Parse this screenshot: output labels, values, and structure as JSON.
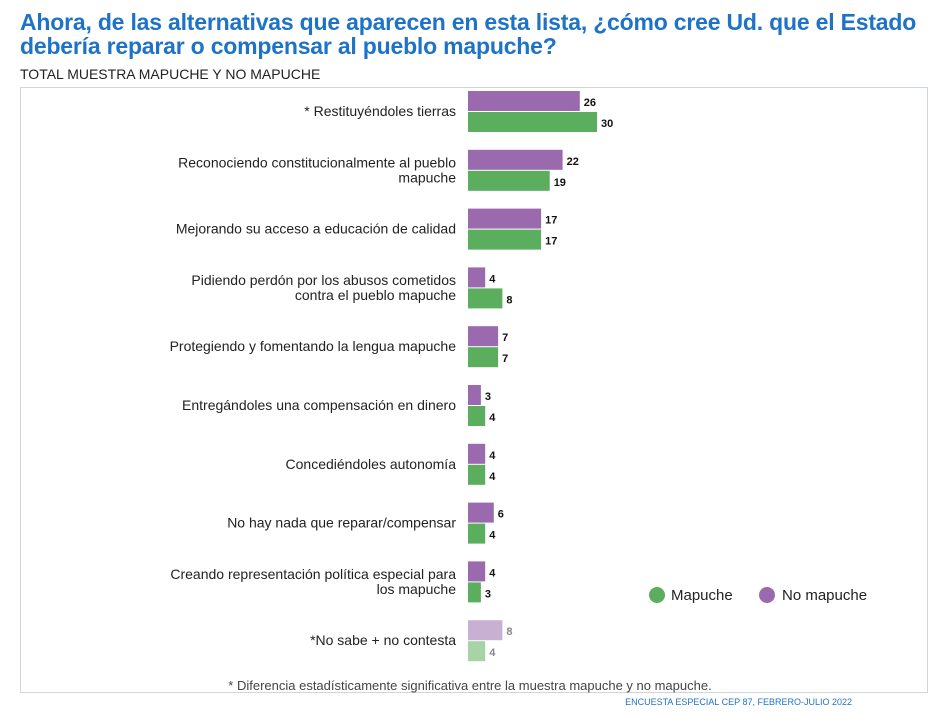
{
  "title": "Ahora, de las alternativas que aparecen en esta lista, ¿cómo cree Ud. que el Estado debería reparar o compensar al pueblo mapuche?",
  "subtitle": "TOTAL MUESTRA MAPUCHE Y NO MAPUCHE",
  "footnote": "* Diferencia estadísticamente significativa entre la muestra mapuche y no mapuche.",
  "source": "ENCUESTA ESPECIAL CEP 87, FEBRERO-JULIO 2022",
  "colors": {
    "no_mapuche": "#9b6aae",
    "mapuche": "#5aae5e",
    "no_mapuche_light": "#c8b0d3",
    "mapuche_light": "#a6d4a6"
  },
  "chart_data": {
    "type": "bar",
    "orientation": "horizontal",
    "categories": [
      [
        "* Restituyéndoles tierras"
      ],
      [
        "Reconociendo constitucionalmente al pueblo",
        "mapuche"
      ],
      [
        "Mejorando su acceso a educación de calidad"
      ],
      [
        "Pidiendo perdón por los abusos cometidos",
        "contra el pueblo mapuche"
      ],
      [
        "Protegiendo y fomentando la lengua mapuche"
      ],
      [
        "Entregándoles una compensación en dinero"
      ],
      [
        "Concediéndoles autonomía"
      ],
      [
        "No hay nada que reparar/compensar"
      ],
      [
        "Creando representación política especial para",
        "los mapuche"
      ],
      [
        "*No sabe + no contesta"
      ]
    ],
    "series": [
      {
        "name": "No mapuche",
        "values": [
          26,
          22,
          17,
          4,
          7,
          3,
          4,
          6,
          4,
          8
        ]
      },
      {
        "name": "Mapuche",
        "values": [
          30,
          19,
          17,
          8,
          7,
          4,
          4,
          4,
          3,
          4
        ]
      }
    ],
    "legend": [
      "Mapuche",
      "No mapuche"
    ],
    "legend_position": "right",
    "xlim": [
      0,
      35
    ],
    "grid": false
  }
}
